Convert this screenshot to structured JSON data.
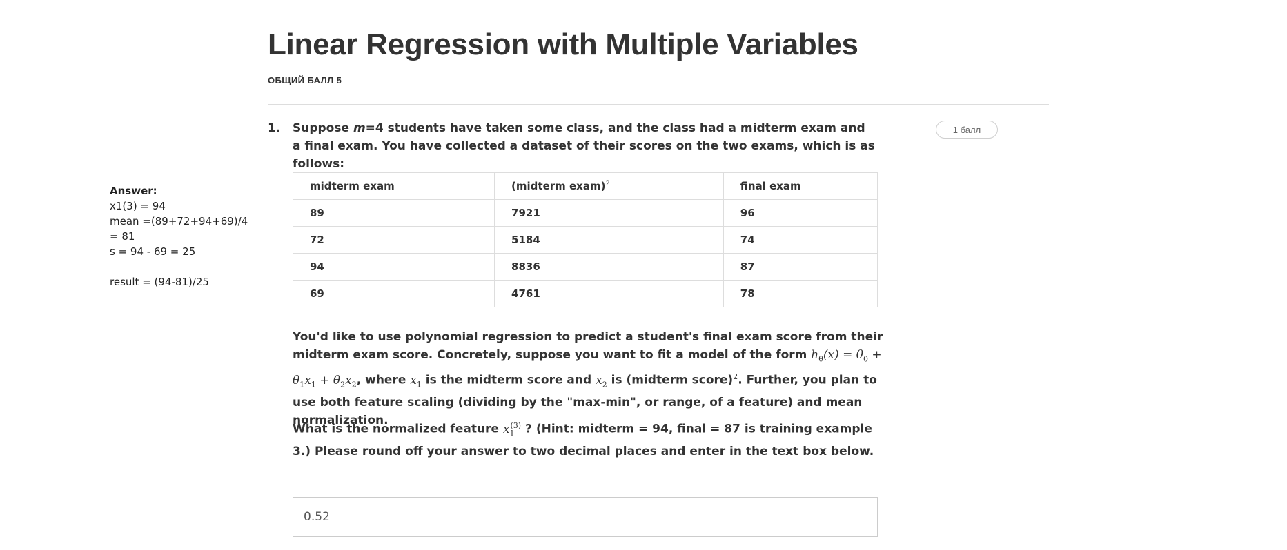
{
  "page": {
    "title": "Linear Regression with Multiple Variables",
    "total_score": "ОБЩИЙ БАЛЛ 5"
  },
  "side_notes": {
    "title": "Answer:",
    "lines": [
      "x1(3) = 94",
      "mean =(89+72+94+69)/4",
      "= 81",
      "s = 94 - 69 = 25",
      "",
      "result = (94-81)/25"
    ]
  },
  "question": {
    "number": "1.",
    "points": "1 балл",
    "intro_a": "Suppose ",
    "intro_m": "m",
    "intro_b": "=4 students have taken some class, and the class had a midterm exam and a final exam. You have collected a dataset of their scores on the two exams, which is as follows:",
    "table": {
      "headers": [
        "midterm exam",
        "(midterm exam)",
        "final exam"
      ],
      "header_sup": "2",
      "rows": [
        [
          "89",
          "7921",
          "96"
        ],
        [
          "72",
          "5184",
          "74"
        ],
        [
          "94",
          "8836",
          "87"
        ],
        [
          "69",
          "4761",
          "78"
        ]
      ]
    },
    "para2": {
      "t1": "You'd like to use polynomial regression to predict a student's final exam score from their midterm exam score. Concretely, suppose you want to fit a model of the form ",
      "t2": ", where ",
      "t3": " is the midterm score and ",
      "t4": " is (midterm score)",
      "t4_sup": "2",
      "t5": ". Further, you plan to use both feature scaling (dividing by the \"max-min\", or range, of a feature) and mean normalization."
    },
    "para3": {
      "t1": "What is the normalized feature ",
      "t2": "? (Hint: midterm = 94, final = 87 is training example 3.) Please round off your answer to two decimal places and enter in the text box below."
    },
    "answer_value": "0.52"
  }
}
